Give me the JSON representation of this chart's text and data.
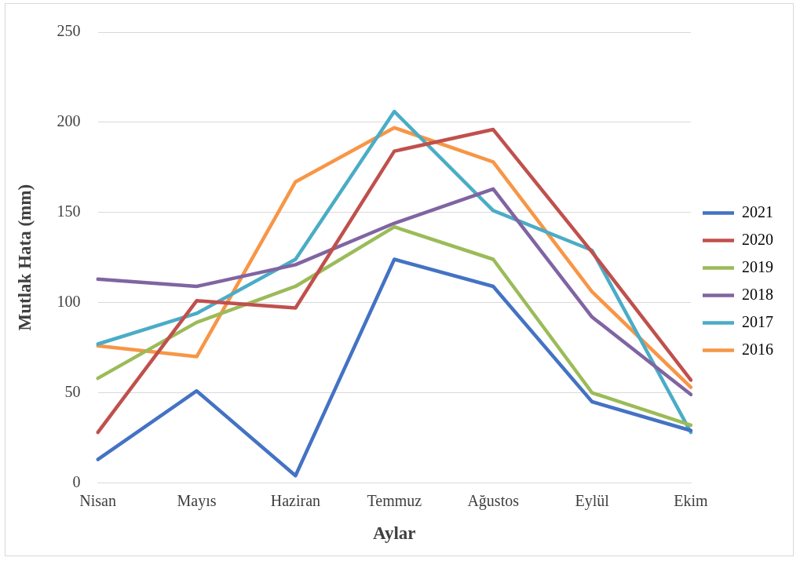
{
  "chart_data": {
    "type": "line",
    "xlabel": "Aylar",
    "ylabel": "Mutlak Hata (mm)",
    "categories": [
      "Nisan",
      "Mayıs",
      "Haziran",
      "Temmuz",
      "Ağustos",
      "Eylül",
      "Ekim"
    ],
    "ylim": [
      0,
      250
    ],
    "yticks": [
      0,
      50,
      100,
      150,
      200,
      250
    ],
    "grid": "y",
    "legend": "right",
    "marker": "none",
    "line_style": "solid",
    "series": [
      {
        "name": "2021",
        "color": "#4472c4",
        "values": [
          13,
          51,
          4,
          124,
          109,
          45,
          29
        ]
      },
      {
        "name": "2020",
        "color": "#c0504d",
        "values": [
          28,
          101,
          97,
          184,
          196,
          128,
          57
        ]
      },
      {
        "name": "2019",
        "color": "#9bbb59",
        "values": [
          58,
          89,
          109,
          142,
          124,
          50,
          32
        ]
      },
      {
        "name": "2018",
        "color": "#8064a2",
        "values": [
          113,
          109,
          121,
          144,
          163,
          92,
          49
        ]
      },
      {
        "name": "2017",
        "color": "#4bacc6",
        "values": [
          77,
          94,
          124,
          206,
          151,
          129,
          28
        ]
      },
      {
        "name": "2016",
        "color": "#f79646",
        "values": [
          76,
          70,
          167,
          197,
          178,
          106,
          53
        ]
      }
    ]
  }
}
